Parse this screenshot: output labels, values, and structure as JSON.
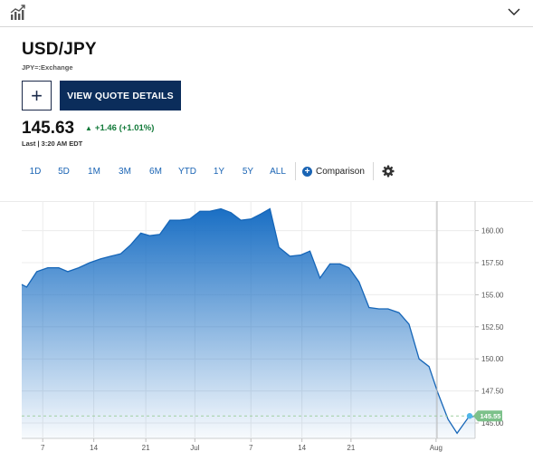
{
  "header": {
    "chart_icon": "chart-trend-icon",
    "collapse_icon": "chevron-down-icon"
  },
  "quote": {
    "symbol": "USD/JPY",
    "exchange": "JPY=:Exchange",
    "add_label": "+",
    "details_label": "VIEW QUOTE DETAILS",
    "price": "145.63",
    "change_arrow": "▲",
    "change": "+1.46 (+1.01%)",
    "last": "Last | 3:20 AM EDT",
    "up_color": "#137a3a",
    "brand_color": "#0b2d5b"
  },
  "tabs": [
    {
      "label": "1D",
      "active": false
    },
    {
      "label": "5D",
      "active": false
    },
    {
      "label": "1M",
      "active": true
    },
    {
      "label": "3M",
      "active": false
    },
    {
      "label": "6M",
      "active": false
    },
    {
      "label": "YTD",
      "active": false
    },
    {
      "label": "1Y",
      "active": false
    },
    {
      "label": "5Y",
      "active": false
    },
    {
      "label": "ALL",
      "active": false
    }
  ],
  "toolbar": {
    "comparison_label": "Comparison",
    "comparison_icon": "plus-circle-icon",
    "settings_icon": "gear-icon"
  },
  "chart_data": {
    "type": "area",
    "color": "#1a6fc4",
    "ylim": [
      143.8,
      162.3
    ],
    "y_ticks": [
      {
        "value": 160.0,
        "label": "160.00"
      },
      {
        "value": 157.5,
        "label": "157.50"
      },
      {
        "value": 155.0,
        "label": "155.00"
      },
      {
        "value": 152.5,
        "label": "152.50"
      },
      {
        "value": 150.0,
        "label": "150.00"
      },
      {
        "value": 147.5,
        "label": "147.50"
      },
      {
        "value": 145.0,
        "label": "145.00"
      }
    ],
    "x_ticks": [
      {
        "t": 2.1,
        "label": "7"
      },
      {
        "t": 7.2,
        "label": "14"
      },
      {
        "t": 12.4,
        "label": "21"
      },
      {
        "t": 17.3,
        "label": "Jul"
      },
      {
        "t": 22.9,
        "label": "7"
      },
      {
        "t": 28.0,
        "label": "14"
      },
      {
        "t": 32.9,
        "label": "21"
      },
      {
        "t": 41.4,
        "label": "Aug"
      }
    ],
    "xlim": [
      0,
      45.3
    ],
    "marker_t": 41.5,
    "last_value": "145.55",
    "last_value_num": 145.55,
    "last_badge_color": "#7cc18a",
    "points": [
      [
        0.0,
        155.8
      ],
      [
        0.5,
        155.6
      ],
      [
        1.5,
        156.8
      ],
      [
        2.6,
        157.1
      ],
      [
        3.7,
        157.1
      ],
      [
        4.6,
        156.8
      ],
      [
        5.7,
        157.1
      ],
      [
        6.8,
        157.5
      ],
      [
        7.9,
        157.8
      ],
      [
        8.9,
        158.0
      ],
      [
        9.9,
        158.2
      ],
      [
        10.9,
        158.9
      ],
      [
        11.9,
        159.8
      ],
      [
        12.8,
        159.6
      ],
      [
        13.8,
        159.7
      ],
      [
        14.8,
        160.8
      ],
      [
        15.8,
        160.8
      ],
      [
        16.8,
        160.9
      ],
      [
        17.8,
        161.5
      ],
      [
        18.8,
        161.5
      ],
      [
        19.9,
        161.7
      ],
      [
        20.9,
        161.4
      ],
      [
        21.9,
        160.8
      ],
      [
        22.9,
        160.9
      ],
      [
        23.9,
        161.3
      ],
      [
        24.8,
        161.7
      ],
      [
        25.7,
        158.7
      ],
      [
        26.8,
        158.0
      ],
      [
        27.9,
        158.1
      ],
      [
        28.8,
        158.4
      ],
      [
        29.8,
        156.3
      ],
      [
        30.8,
        157.4
      ],
      [
        31.8,
        157.4
      ],
      [
        32.7,
        157.1
      ],
      [
        33.7,
        156.0
      ],
      [
        34.7,
        154.0
      ],
      [
        35.7,
        153.9
      ],
      [
        36.6,
        153.9
      ],
      [
        37.7,
        153.6
      ],
      [
        38.7,
        152.7
      ],
      [
        39.7,
        150.0
      ],
      [
        40.7,
        149.4
      ],
      [
        41.6,
        147.3
      ],
      [
        42.6,
        145.3
      ],
      [
        43.5,
        144.2
      ],
      [
        44.6,
        145.4
      ],
      [
        45.3,
        145.55
      ]
    ]
  }
}
